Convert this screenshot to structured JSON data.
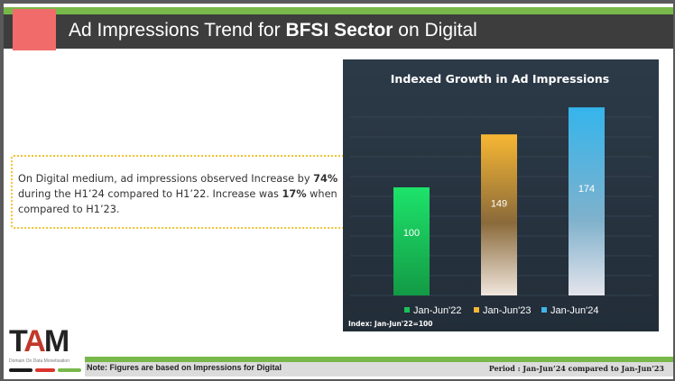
{
  "header": {
    "title_prefix": "Ad Impressions Trend for ",
    "title_bold": "BFSI Sector",
    "title_suffix": " on Digital"
  },
  "callout": {
    "t1": "On Digital medium, ad impressions observed  Increase by ",
    "b1": "74%",
    "t2": " during the H1’24 compared to H1’22. Increase was ",
    "b2": "17%",
    "t3": " when compared to H1’23."
  },
  "chart_data": {
    "type": "bar",
    "title": "Indexed Growth in Ad Impressions",
    "categories": [
      "Jan-Jun'22",
      "Jan-Jun'23",
      "Jan-Jun'24"
    ],
    "values": [
      100,
      149,
      174
    ],
    "ylim": [
      0,
      185
    ],
    "grid": true,
    "legend_position": "bottom",
    "colors": [
      "#19c25a",
      "#f5b735",
      "#3fb5e8"
    ],
    "legend": [
      "Jan-Jun'22",
      "Jan-Jun'23",
      "Jan-Jun'24"
    ],
    "note": "Index: Jan-Jun'22=100"
  },
  "logo": {
    "text_t": "T",
    "text_a": "A",
    "text_m": "M",
    "tagline": "Domain  On  Data Monetisation"
  },
  "footer": {
    "note": "Note: Figures are based on Impressions for Digital",
    "period": "Period : Jan-Jun’24 compared to Jan-Jun’23"
  },
  "colors": {
    "header_bar": "#3d3d3d",
    "accent_green": "#78b84a",
    "accent_red": "#f26b6b",
    "callout_border": "#f2c230",
    "chart_bg": "#283441"
  }
}
